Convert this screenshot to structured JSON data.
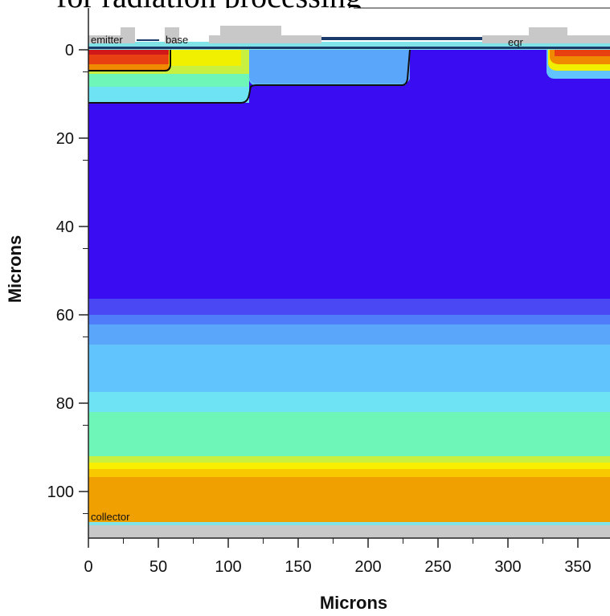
{
  "caption": "for radiation processing",
  "plot": {
    "xlabel": "Microns",
    "ylabel": "Microns",
    "x_ticks": [
      "0",
      "50",
      "100",
      "150",
      "200",
      "250",
      "300",
      "350"
    ],
    "y_ticks": [
      "0",
      "20",
      "40",
      "60",
      "80",
      "100"
    ],
    "xlim": [
      0,
      370
    ],
    "ylim": [
      -8,
      110
    ],
    "contacts": {
      "emitter": "emitter",
      "base": "base",
      "eqr": "eqr",
      "collector": "collector"
    },
    "colors": {
      "substrate": "#3a0cf2",
      "collector_doping": "#f0a000",
      "metal": "#c8c8c8",
      "oxide": "#7fe3e8"
    }
  }
}
